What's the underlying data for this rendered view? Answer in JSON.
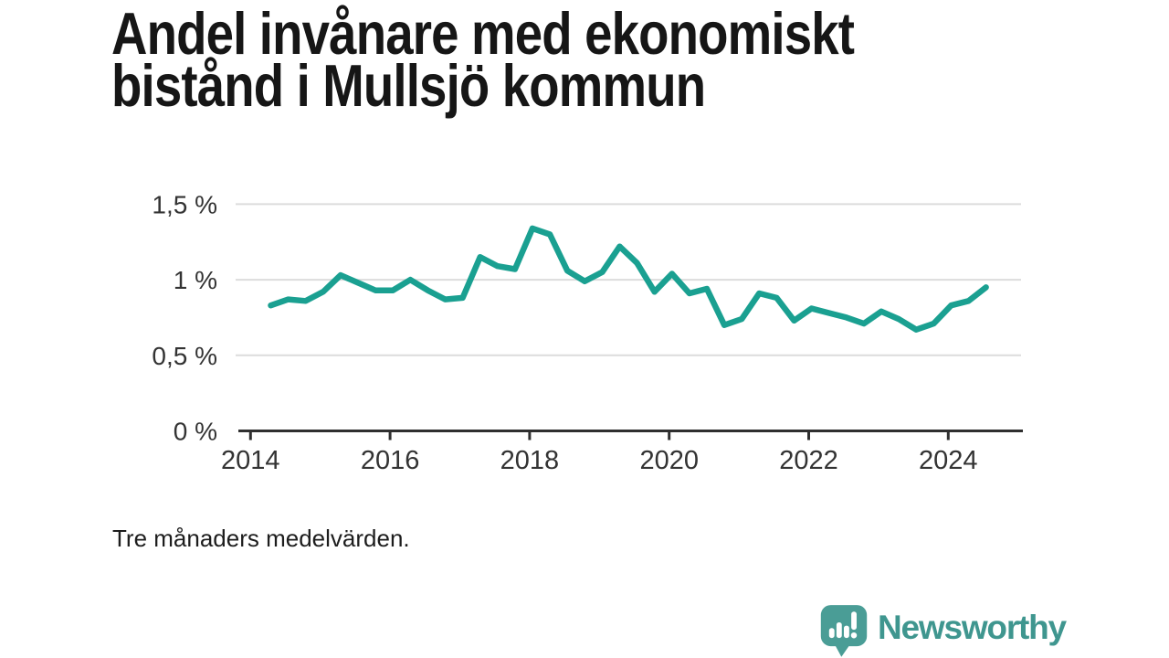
{
  "title": "Andel invånare med ekonomiskt bistånd i Mullsjö kommun",
  "title_lines": [
    "Andel invånare med ekonomiskt",
    "bistånd i Mullsjö kommun"
  ],
  "footnote": "Tre månaders medelvärden.",
  "logo": {
    "text": "Newsworthy",
    "icon": "newsworthy-pin-barchart-icon"
  },
  "colors": {
    "background": "#ffffff",
    "title": "#161616",
    "line": "#1aa091",
    "grid": "#dcdcdc",
    "axis": "#2f2f2f",
    "tick_label": "#333333",
    "logo_mark": "#4a9d96",
    "logo_text": "#3f968f"
  },
  "chart_data": {
    "type": "line",
    "title": "Andel invånare med ekonomiskt bistånd i Mullsjö kommun",
    "note": "Tre månaders medelvärden.",
    "series_name": "Andel invånare med ekonomiskt bistånd",
    "unit": "%",
    "grid": "horizontal",
    "legend": "none",
    "ylim": [
      0,
      1.5
    ],
    "xlim": [
      2013.83,
      2025.07
    ],
    "y_ticks": [
      {
        "value": 1.5,
        "label": "1,5 %"
      },
      {
        "value": 1.0,
        "label": "1 %"
      },
      {
        "value": 0.5,
        "label": "0,5 %"
      },
      {
        "value": 0.0,
        "label": "0 %"
      }
    ],
    "x_ticks": [
      {
        "value": 2014,
        "label": "2014"
      },
      {
        "value": 2016,
        "label": "2016"
      },
      {
        "value": 2018,
        "label": "2018"
      },
      {
        "value": 2020,
        "label": "2020"
      },
      {
        "value": 2022,
        "label": "2022"
      },
      {
        "value": 2024,
        "label": "2024"
      }
    ],
    "x": [
      2014.29,
      2014.54,
      2014.79,
      2015.04,
      2015.29,
      2015.54,
      2015.79,
      2016.04,
      2016.29,
      2016.54,
      2016.79,
      2017.04,
      2017.29,
      2017.54,
      2017.79,
      2018.04,
      2018.29,
      2018.54,
      2018.79,
      2019.04,
      2019.29,
      2019.54,
      2019.79,
      2020.04,
      2020.29,
      2020.54,
      2020.79,
      2021.04,
      2021.29,
      2021.54,
      2021.79,
      2022.04,
      2022.29,
      2022.54,
      2022.79,
      2023.04,
      2023.29,
      2023.54,
      2023.79,
      2024.04,
      2024.29,
      2024.54
    ],
    "values": [
      0.83,
      0.87,
      0.86,
      0.92,
      1.03,
      0.98,
      0.93,
      0.93,
      1.0,
      0.93,
      0.87,
      0.88,
      1.15,
      1.09,
      1.07,
      1.34,
      1.3,
      1.06,
      0.99,
      1.05,
      1.22,
      1.11,
      0.92,
      1.04,
      0.91,
      0.94,
      0.7,
      0.74,
      0.91,
      0.88,
      0.73,
      0.81,
      0.78,
      0.75,
      0.71,
      0.79,
      0.74,
      0.67,
      0.71,
      0.83,
      0.86,
      0.95
    ]
  }
}
